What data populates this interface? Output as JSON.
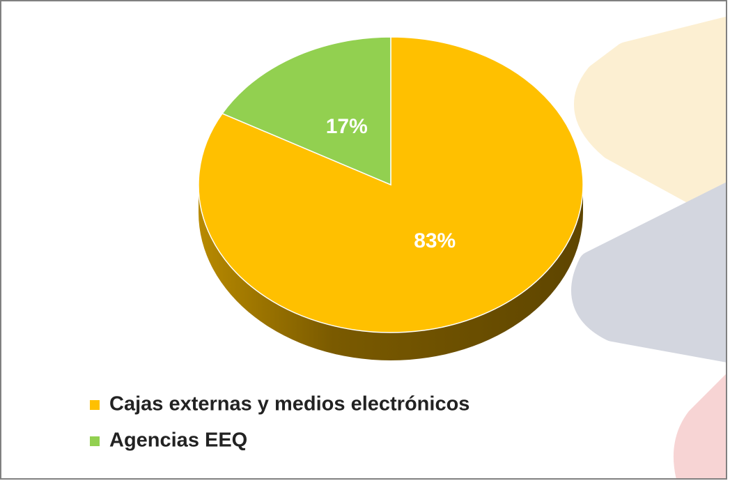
{
  "chart_data": {
    "type": "pie",
    "categories": [
      "Cajas externas y medios electrónicos",
      "Agencias EEQ"
    ],
    "values": [
      83,
      17
    ],
    "value_labels": [
      "83%",
      "17%"
    ],
    "colors": [
      "#ffc000",
      "#92d050"
    ]
  }
}
